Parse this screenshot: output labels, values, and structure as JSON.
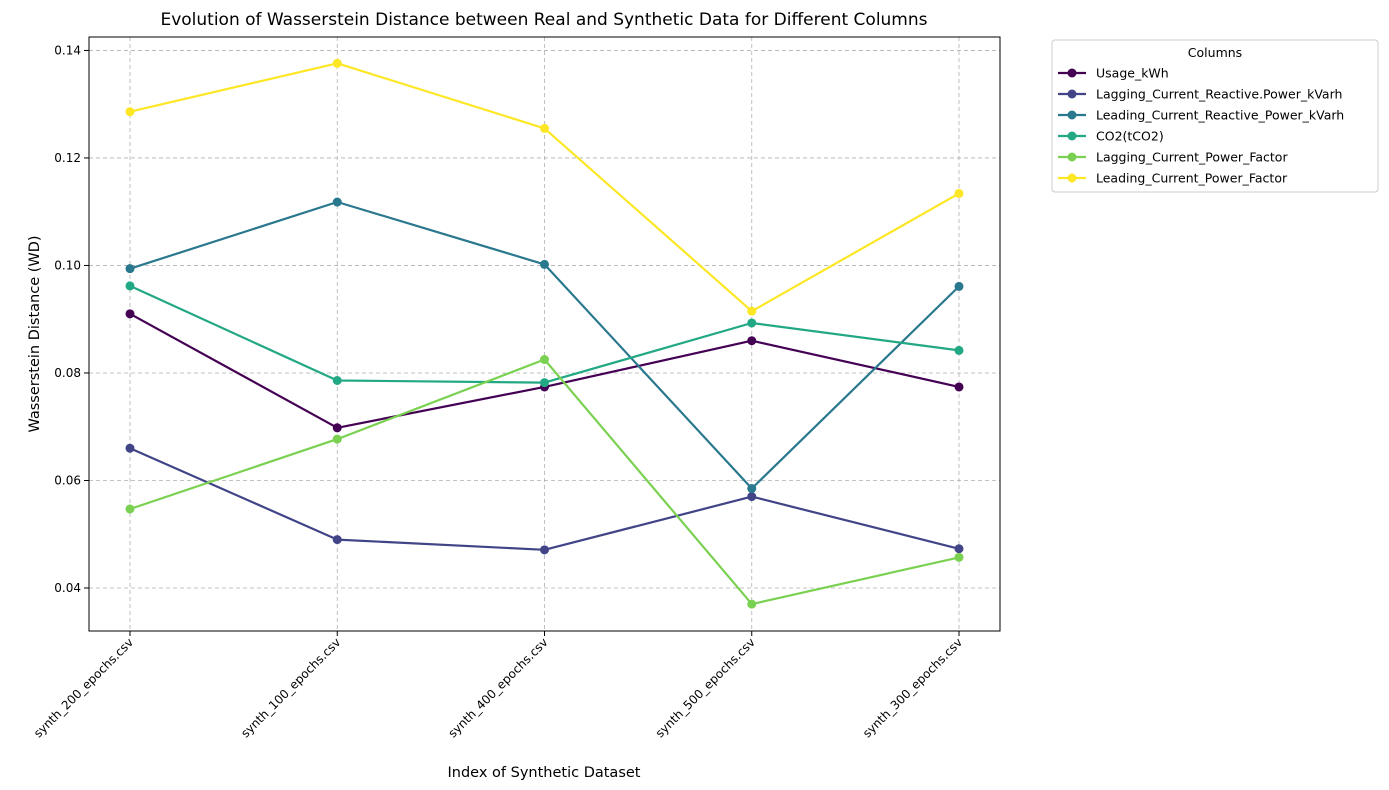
{
  "chart_data": {
    "type": "line",
    "title": "Evolution of Wasserstein Distance between Real and Synthetic Data for Different Columns",
    "xlabel": "Index of Synthetic Dataset",
    "ylabel": "Wasserstein Distance (WD)",
    "categories": [
      "synth_200_epochs.csv",
      "synth_100_epochs.csv",
      "synth_400_epochs.csv",
      "synth_500_epochs.csv",
      "synth_300_epochs.csv"
    ],
    "ylim": [
      0.032,
      0.1425
    ],
    "yticks": [
      0.04,
      0.06,
      0.08,
      0.1,
      0.12,
      0.14
    ],
    "ytick_labels": [
      "0.04",
      "0.06",
      "0.08",
      "0.10",
      "0.12",
      "0.14"
    ],
    "grid": true,
    "legend": {
      "title": "Columns",
      "placement": "outside-top-right"
    },
    "series": [
      {
        "name": "Usage_kWh",
        "color": "#440154",
        "values": [
          0.091,
          0.0698,
          0.0774,
          0.086,
          0.0774
        ]
      },
      {
        "name": "Lagging_Current_Reactive.Power_kVarh",
        "color": "#414487",
        "values": [
          0.066,
          0.049,
          0.0471,
          0.057,
          0.0473
        ]
      },
      {
        "name": "Leading_Current_Reactive_Power_kVarh",
        "color": "#2a788e",
        "values": [
          0.0994,
          0.1118,
          0.1002,
          0.0585,
          0.0961
        ]
      },
      {
        "name": "CO2(tCO2)",
        "color": "#22a884",
        "values": [
          0.0962,
          0.0786,
          0.0782,
          0.0893,
          0.0842
        ]
      },
      {
        "name": "Lagging_Current_Power_Factor",
        "color": "#7ad151",
        "values": [
          0.0547,
          0.0677,
          0.0825,
          0.037,
          0.0457
        ]
      },
      {
        "name": "Leading_Current_Power_Factor",
        "color": "#fde725",
        "values": [
          0.1286,
          0.1376,
          0.1255,
          0.0915,
          0.1134
        ]
      }
    ]
  }
}
